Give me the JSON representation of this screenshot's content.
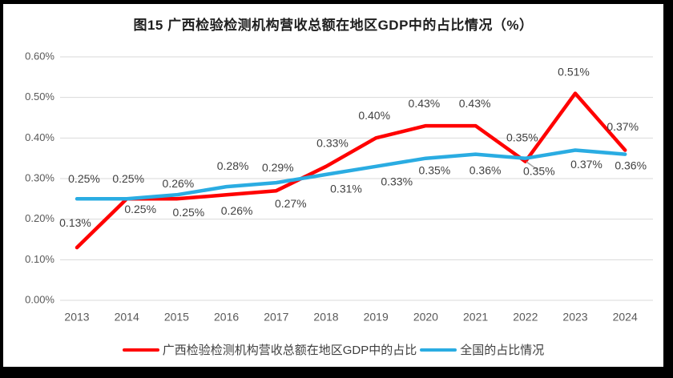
{
  "figure": {
    "title": "图15 广西检验检测机构营收总额在地区GDP中的占比情况（%）"
  },
  "chart_data": {
    "type": "line",
    "title": "图15 广西检验检测机构营收总额在地区GDP中的占比情况（%）",
    "categories": [
      "2013",
      "2014",
      "2015",
      "2016",
      "2017",
      "2018",
      "2019",
      "2020",
      "2021",
      "2022",
      "2023",
      "2024"
    ],
    "series": [
      {
        "name": "广西检验检测机构营收总额在地区GDP中的占比",
        "color": "#FF0000",
        "values": [
          0.13,
          0.25,
          0.25,
          0.26,
          0.27,
          0.33,
          0.4,
          0.43,
          0.43,
          0.35,
          0.51,
          0.37
        ],
        "point_labels": [
          "0.13%",
          "0.25%",
          "0.25%",
          "0.26%",
          "0.27%",
          "0.33%",
          "0.40%",
          "0.43%",
          "0.43%",
          "0.35%",
          "0.51%",
          "0.37%"
        ]
      },
      {
        "name": "全国的占比情况",
        "color": "#2AACE2",
        "values": [
          0.25,
          0.25,
          0.26,
          0.28,
          0.29,
          0.31,
          0.33,
          0.35,
          0.36,
          0.35,
          0.37,
          0.36
        ],
        "point_labels": [
          "0.25%",
          "0.25%",
          "0.26%",
          "0.28%",
          "0.29%",
          "0.31%",
          "0.33%",
          "0.35%",
          "0.36%",
          "0.35%",
          "0.37%",
          "0.36%"
        ]
      }
    ],
    "xlabel": "",
    "ylabel": "",
    "ylim": [
      0,
      0.6
    ],
    "y_ticks": [
      "0.60%",
      "0.50%",
      "0.40%",
      "0.30%",
      "0.20%",
      "0.10%",
      "0.00%"
    ],
    "grid": true,
    "legend_position": "bottom",
    "colors": {
      "grid": "#D9D9D9",
      "axis_text": "#595959",
      "data_label_text": "#404040",
      "leader_line": "#A6A6A6",
      "frame_border": "#000000",
      "background": "#FFFFFF"
    }
  }
}
